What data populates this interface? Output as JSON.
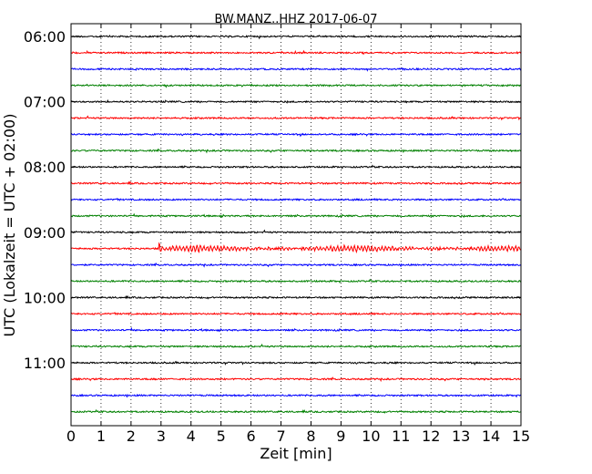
{
  "chart_data": {
    "type": "line",
    "title": "BW.MANZ..HHZ 2017-06-07",
    "xlabel": "Zeit  [min]",
    "ylabel": "UTC (Lokalzeit = UTC + 02:00)",
    "xlim": [
      0,
      15
    ],
    "xticks": [
      "0",
      "1",
      "2",
      "3",
      "4",
      "5",
      "6",
      "7",
      "8",
      "9",
      "10",
      "11",
      "12",
      "13",
      "14",
      "15"
    ],
    "yticks": [
      "06:00",
      "07:00",
      "08:00",
      "09:00",
      "10:00",
      "11:00"
    ],
    "grid_x": true,
    "trace_interval_minutes": 15,
    "trace_colors": [
      "#000000",
      "#ff0000",
      "#0000ff",
      "#008000"
    ],
    "traces": [
      {
        "start": "06:00",
        "color": "#000000",
        "amplitude": "low"
      },
      {
        "start": "06:15",
        "color": "#ff0000",
        "amplitude": "low"
      },
      {
        "start": "06:30",
        "color": "#0000ff",
        "amplitude": "low"
      },
      {
        "start": "06:45",
        "color": "#008000",
        "amplitude": "low"
      },
      {
        "start": "07:00",
        "color": "#000000",
        "amplitude": "low"
      },
      {
        "start": "07:15",
        "color": "#ff0000",
        "amplitude": "low"
      },
      {
        "start": "07:30",
        "color": "#0000ff",
        "amplitude": "low"
      },
      {
        "start": "07:45",
        "color": "#008000",
        "amplitude": "low"
      },
      {
        "start": "08:00",
        "color": "#000000",
        "amplitude": "low"
      },
      {
        "start": "08:15",
        "color": "#ff0000",
        "amplitude": "low"
      },
      {
        "start": "08:30",
        "color": "#0000ff",
        "amplitude": "low"
      },
      {
        "start": "08:45",
        "color": "#008000",
        "amplitude": "low"
      },
      {
        "start": "09:00",
        "color": "#000000",
        "amplitude": "low"
      },
      {
        "start": "09:15",
        "color": "#ff0000",
        "amplitude": "event",
        "event_onset_min": 2.9
      },
      {
        "start": "09:30",
        "color": "#0000ff",
        "amplitude": "low"
      },
      {
        "start": "09:45",
        "color": "#008000",
        "amplitude": "low"
      },
      {
        "start": "10:00",
        "color": "#000000",
        "amplitude": "low"
      },
      {
        "start": "10:15",
        "color": "#ff0000",
        "amplitude": "low"
      },
      {
        "start": "10:30",
        "color": "#0000ff",
        "amplitude": "low"
      },
      {
        "start": "10:45",
        "color": "#008000",
        "amplitude": "low"
      },
      {
        "start": "11:00",
        "color": "#000000",
        "amplitude": "low"
      },
      {
        "start": "11:15",
        "color": "#ff0000",
        "amplitude": "low"
      },
      {
        "start": "11:30",
        "color": "#0000ff",
        "amplitude": "low"
      },
      {
        "start": "11:45",
        "color": "#008000",
        "amplitude": "low"
      }
    ]
  }
}
